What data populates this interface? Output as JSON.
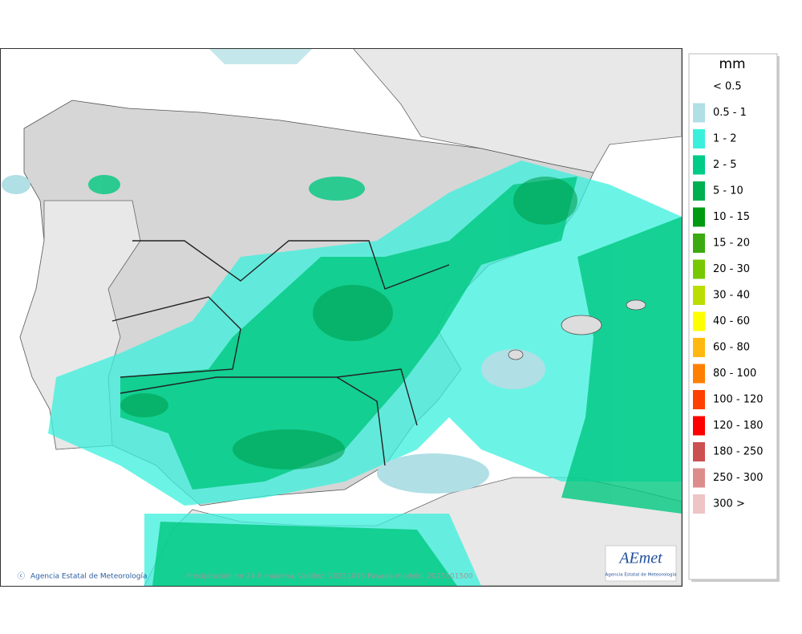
{
  "legend": {
    "title": "mm",
    "items": [
      {
        "label": "< 0.5",
        "color": null
      },
      {
        "label": "0.5 - 1",
        "color": "#b0dfe5"
      },
      {
        "label": "1 - 2",
        "color": "#3af0dc"
      },
      {
        "label": "2 - 5",
        "color": "#00cc88"
      },
      {
        "label": "5 - 10",
        "color": "#00b050"
      },
      {
        "label": "10 - 15",
        "color": "#009a10"
      },
      {
        "label": "15 - 20",
        "color": "#3aaa10"
      },
      {
        "label": "20 - 30",
        "color": "#77c800"
      },
      {
        "label": "30 - 40",
        "color": "#bbde00"
      },
      {
        "label": "40 - 60",
        "color": "#ffff00"
      },
      {
        "label": "60 - 80",
        "color": "#ffb810"
      },
      {
        "label": "80 - 100",
        "color": "#ff8000"
      },
      {
        "label": "100 - 120",
        "color": "#ff4000"
      },
      {
        "label": "120 - 180",
        "color": "#ff0000"
      },
      {
        "label": "180 - 250",
        "color": "#cc5050"
      },
      {
        "label": "250 - 300",
        "color": "#dd8c8c"
      },
      {
        "label": "300 >",
        "color": "#eec4c4"
      }
    ]
  },
  "footer": {
    "agency": "Agencia Estatal de Meteorología",
    "caption": "Precipitación en 24 h máxima. Validez: 20251016 Pasada modelo: 2025101500"
  },
  "logo": {
    "name": "AEmet",
    "subtitle": "Agencia Estatal de Meteorología"
  }
}
